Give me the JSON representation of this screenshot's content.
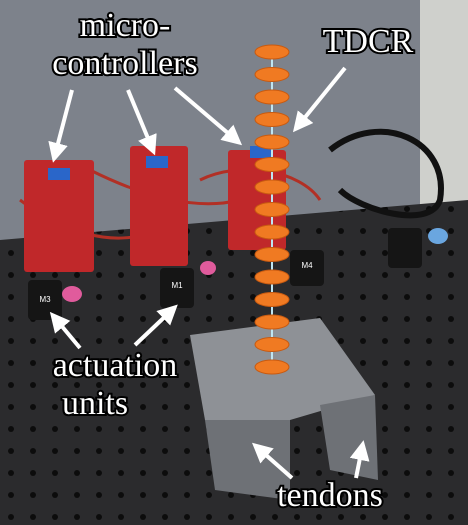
{
  "labels": {
    "microcontrollers": [
      "micro-",
      "controllers"
    ],
    "tdcr": "TDCR",
    "actuation_units": [
      "actuation",
      "units"
    ],
    "tendons": "tendons"
  },
  "motor_labels": [
    "M1",
    "M3",
    "M4"
  ]
}
